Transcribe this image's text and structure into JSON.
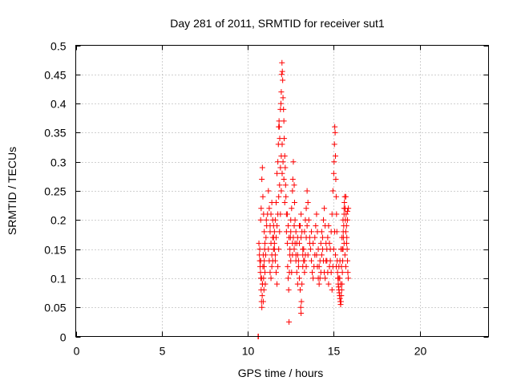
{
  "chart_data": {
    "type": "scatter",
    "title": "Day 281 of 2011, SRMTID for receiver sut1",
    "xlabel": "GPS time / hours",
    "ylabel": "SRMTID / TECUs",
    "xlim": [
      0,
      24
    ],
    "ylim": [
      0,
      0.5
    ],
    "xticks": [
      0,
      5,
      10,
      15,
      20
    ],
    "xtick_labels": [
      "0",
      "5",
      "10",
      "15",
      "20"
    ],
    "yticks": [
      0,
      0.05,
      0.1,
      0.15,
      0.2,
      0.25,
      0.3,
      0.35,
      0.4,
      0.45,
      0.5
    ],
    "ytick_labels": [
      "0",
      "0.05",
      "0.1",
      "0.15",
      "0.2",
      "0.25",
      "0.3",
      "0.35",
      "0.4",
      "0.45",
      "0.5"
    ],
    "grid": true,
    "marker": "+",
    "color": "#ff0000",
    "series": [
      {
        "name": "sut1",
        "points": [
          [
            10.6,
            0.0
          ],
          [
            10.62,
            0.0
          ],
          [
            10.65,
            0.16
          ],
          [
            10.68,
            0.14
          ],
          [
            10.7,
            0.13
          ],
          [
            10.72,
            0.12
          ],
          [
            10.74,
            0.11
          ],
          [
            10.76,
            0.1
          ],
          [
            10.78,
            0.08
          ],
          [
            10.8,
            0.06
          ],
          [
            10.82,
            0.05
          ],
          [
            10.84,
            0.07
          ],
          [
            10.86,
            0.09
          ],
          [
            10.88,
            0.12
          ],
          [
            10.9,
            0.14
          ],
          [
            10.92,
            0.1
          ],
          [
            10.94,
            0.08
          ],
          [
            10.96,
            0.13
          ],
          [
            10.98,
            0.15
          ],
          [
            11.0,
            0.11
          ],
          [
            11.02,
            0.09
          ],
          [
            11.04,
            0.14
          ],
          [
            11.06,
            0.17
          ],
          [
            11.08,
            0.2
          ],
          [
            10.7,
            0.15
          ],
          [
            10.75,
            0.13
          ],
          [
            10.8,
            0.1
          ],
          [
            10.85,
            0.09
          ],
          [
            10.9,
            0.06
          ],
          [
            10.95,
            0.12
          ],
          [
            10.75,
            0.2
          ],
          [
            10.78,
            0.22
          ],
          [
            10.82,
            0.27
          ],
          [
            10.85,
            0.29
          ],
          [
            10.88,
            0.24
          ],
          [
            10.92,
            0.21
          ],
          [
            10.96,
            0.18
          ],
          [
            11.0,
            0.16
          ],
          [
            11.1,
            0.19
          ],
          [
            11.15,
            0.21
          ],
          [
            11.2,
            0.25
          ],
          [
            11.25,
            0.22
          ],
          [
            11.3,
            0.18
          ],
          [
            11.35,
            0.16
          ],
          [
            11.4,
            0.14
          ],
          [
            11.45,
            0.13
          ],
          [
            11.5,
            0.15
          ],
          [
            11.55,
            0.18
          ],
          [
            11.6,
            0.2
          ],
          [
            11.65,
            0.23
          ],
          [
            11.7,
            0.28
          ],
          [
            11.75,
            0.3
          ],
          [
            11.78,
            0.33
          ],
          [
            11.8,
            0.36
          ],
          [
            11.82,
            0.37
          ],
          [
            11.84,
            0.36
          ],
          [
            11.86,
            0.34
          ],
          [
            11.9,
            0.39
          ],
          [
            11.93,
            0.4
          ],
          [
            11.95,
            0.42
          ],
          [
            11.97,
            0.45
          ],
          [
            11.99,
            0.47
          ],
          [
            12.01,
            0.455
          ],
          [
            12.03,
            0.44
          ],
          [
            12.05,
            0.41
          ],
          [
            12.08,
            0.39
          ],
          [
            12.1,
            0.37
          ],
          [
            12.12,
            0.34
          ],
          [
            12.15,
            0.31
          ],
          [
            12.18,
            0.29
          ],
          [
            12.2,
            0.26
          ],
          [
            12.22,
            0.24
          ],
          [
            12.25,
            0.21
          ],
          [
            11.2,
            0.15
          ],
          [
            11.25,
            0.13
          ],
          [
            11.3,
            0.11
          ],
          [
            11.35,
            0.1
          ],
          [
            11.4,
            0.12
          ],
          [
            11.45,
            0.17
          ],
          [
            11.5,
            0.19
          ],
          [
            11.55,
            0.16
          ],
          [
            11.6,
            0.13
          ],
          [
            11.65,
            0.11
          ],
          [
            11.7,
            0.09
          ],
          [
            11.75,
            0.12
          ],
          [
            11.8,
            0.15
          ],
          [
            11.85,
            0.18
          ],
          [
            11.9,
            0.21
          ],
          [
            11.95,
            0.25
          ],
          [
            12.0,
            0.28
          ],
          [
            12.05,
            0.3
          ],
          [
            12.1,
            0.27
          ],
          [
            12.15,
            0.23
          ],
          [
            11.3,
            0.19
          ],
          [
            11.35,
            0.21
          ],
          [
            11.4,
            0.23
          ],
          [
            11.45,
            0.2
          ],
          [
            11.5,
            0.17
          ],
          [
            11.55,
            0.15
          ],
          [
            11.6,
            0.14
          ],
          [
            11.65,
            0.17
          ],
          [
            11.7,
            0.19
          ],
          [
            11.75,
            0.21
          ],
          [
            11.8,
            0.24
          ],
          [
            11.85,
            0.26
          ],
          [
            11.9,
            0.29
          ],
          [
            11.95,
            0.31
          ],
          [
            12.0,
            0.33
          ],
          [
            12.25,
            0.18
          ],
          [
            12.3,
            0.16
          ],
          [
            12.32,
            0.12
          ],
          [
            12.35,
            0.1
          ],
          [
            12.38,
            0.08
          ],
          [
            12.4,
            0.025
          ],
          [
            12.42,
            0.11
          ],
          [
            12.45,
            0.14
          ],
          [
            12.48,
            0.17
          ],
          [
            12.5,
            0.2
          ],
          [
            12.55,
            0.22
          ],
          [
            12.6,
            0.25
          ],
          [
            12.62,
            0.27
          ],
          [
            12.65,
            0.3
          ],
          [
            12.7,
            0.26
          ],
          [
            12.72,
            0.23
          ],
          [
            12.75,
            0.2
          ],
          [
            12.8,
            0.18
          ],
          [
            12.85,
            0.16
          ],
          [
            12.9,
            0.14
          ],
          [
            12.95,
            0.12
          ],
          [
            13.0,
            0.1
          ],
          [
            13.05,
            0.08
          ],
          [
            13.08,
            0.05
          ],
          [
            13.1,
            0.04
          ],
          [
            13.12,
            0.06
          ],
          [
            13.15,
            0.09
          ],
          [
            13.2,
            0.12
          ],
          [
            13.25,
            0.15
          ],
          [
            13.3,
            0.18
          ],
          [
            13.35,
            0.2
          ],
          [
            13.4,
            0.22
          ],
          [
            13.45,
            0.25
          ],
          [
            13.5,
            0.23
          ],
          [
            13.55,
            0.2
          ],
          [
            13.6,
            0.17
          ],
          [
            13.65,
            0.15
          ],
          [
            13.7,
            0.13
          ],
          [
            13.75,
            0.11
          ],
          [
            13.8,
            0.1
          ],
          [
            13.85,
            0.12
          ],
          [
            12.3,
            0.21
          ],
          [
            12.35,
            0.19
          ],
          [
            12.4,
            0.17
          ],
          [
            12.45,
            0.15
          ],
          [
            12.5,
            0.13
          ],
          [
            12.55,
            0.11
          ],
          [
            12.6,
            0.14
          ],
          [
            12.65,
            0.17
          ],
          [
            12.7,
            0.19
          ],
          [
            12.75,
            0.16
          ],
          [
            12.8,
            0.13
          ],
          [
            12.85,
            0.11
          ],
          [
            12.9,
            0.09
          ],
          [
            12.95,
            0.13
          ],
          [
            13.0,
            0.16
          ],
          [
            13.05,
            0.19
          ],
          [
            13.1,
            0.21
          ],
          [
            13.15,
            0.18
          ],
          [
            13.2,
            0.15
          ],
          [
            13.25,
            0.13
          ],
          [
            13.3,
            0.11
          ],
          [
            13.35,
            0.14
          ],
          [
            13.4,
            0.17
          ],
          [
            13.45,
            0.19
          ],
          [
            12.5,
            0.18
          ],
          [
            12.6,
            0.16
          ],
          [
            12.7,
            0.15
          ],
          [
            12.8,
            0.14
          ],
          [
            12.9,
            0.17
          ],
          [
            13.0,
            0.19
          ],
          [
            13.1,
            0.17
          ],
          [
            13.2,
            0.14
          ],
          [
            13.3,
            0.13
          ],
          [
            13.4,
            0.12
          ],
          [
            13.5,
            0.14
          ],
          [
            13.6,
            0.16
          ],
          [
            13.7,
            0.18
          ],
          [
            13.8,
            0.16
          ],
          [
            13.9,
            0.14
          ],
          [
            13.9,
            0.17
          ],
          [
            13.95,
            0.19
          ],
          [
            14.0,
            0.21
          ],
          [
            14.05,
            0.18
          ],
          [
            14.1,
            0.15
          ],
          [
            14.15,
            0.12
          ],
          [
            14.2,
            0.1
          ],
          [
            14.25,
            0.11
          ],
          [
            14.3,
            0.14
          ],
          [
            14.35,
            0.17
          ],
          [
            14.4,
            0.2
          ],
          [
            14.45,
            0.22
          ],
          [
            14.5,
            0.19
          ],
          [
            14.55,
            0.16
          ],
          [
            14.6,
            0.13
          ],
          [
            14.65,
            0.11
          ],
          [
            14.7,
            0.09
          ],
          [
            14.75,
            0.12
          ],
          [
            14.8,
            0.15
          ],
          [
            14.85,
            0.18
          ],
          [
            14.9,
            0.21
          ],
          [
            14.95,
            0.25
          ],
          [
            15.0,
            0.28
          ],
          [
            15.02,
            0.3
          ],
          [
            15.04,
            0.33
          ],
          [
            15.06,
            0.36
          ],
          [
            15.08,
            0.35
          ],
          [
            15.1,
            0.31
          ],
          [
            15.12,
            0.27
          ],
          [
            15.14,
            0.24
          ],
          [
            15.16,
            0.21
          ],
          [
            15.18,
            0.18
          ],
          [
            14.0,
            0.14
          ],
          [
            14.05,
            0.12
          ],
          [
            14.1,
            0.1
          ],
          [
            14.15,
            0.09
          ],
          [
            14.2,
            0.13
          ],
          [
            14.25,
            0.16
          ],
          [
            14.3,
            0.18
          ],
          [
            14.35,
            0.15
          ],
          [
            14.4,
            0.13
          ],
          [
            14.45,
            0.11
          ],
          [
            14.5,
            0.1
          ],
          [
            14.55,
            0.13
          ],
          [
            14.6,
            0.15
          ],
          [
            14.65,
            0.17
          ],
          [
            14.7,
            0.19
          ],
          [
            14.75,
            0.16
          ],
          [
            14.8,
            0.13
          ],
          [
            14.85,
            0.11
          ],
          [
            14.9,
            0.08
          ],
          [
            14.95,
            0.12
          ],
          [
            15.0,
            0.15
          ],
          [
            15.05,
            0.18
          ],
          [
            15.1,
            0.14
          ],
          [
            15.15,
            0.12
          ],
          [
            15.2,
            0.13
          ],
          [
            15.22,
            0.11
          ],
          [
            15.24,
            0.1
          ],
          [
            15.26,
            0.09
          ],
          [
            15.28,
            0.085
          ],
          [
            15.3,
            0.08
          ],
          [
            15.32,
            0.075
          ],
          [
            15.34,
            0.07
          ],
          [
            15.36,
            0.065
          ],
          [
            15.38,
            0.06
          ],
          [
            15.4,
            0.055
          ],
          [
            15.42,
            0.06
          ],
          [
            15.44,
            0.07
          ],
          [
            15.46,
            0.08
          ],
          [
            15.48,
            0.09
          ],
          [
            15.5,
            0.11
          ],
          [
            15.52,
            0.13
          ],
          [
            15.54,
            0.15
          ],
          [
            15.56,
            0.17
          ],
          [
            15.58,
            0.19
          ],
          [
            15.6,
            0.21
          ],
          [
            15.62,
            0.23
          ],
          [
            15.64,
            0.24
          ],
          [
            15.66,
            0.22
          ],
          [
            15.68,
            0.2
          ],
          [
            15.7,
            0.18
          ],
          [
            15.72,
            0.21
          ],
          [
            15.74,
            0.19
          ],
          [
            15.76,
            0.17
          ],
          [
            15.78,
            0.15
          ],
          [
            15.8,
            0.13
          ],
          [
            15.82,
            0.11
          ],
          [
            15.84,
            0.1
          ],
          [
            15.3,
            0.12
          ],
          [
            15.35,
            0.1
          ],
          [
            15.4,
            0.09
          ],
          [
            15.45,
            0.12
          ],
          [
            15.5,
            0.15
          ],
          [
            15.55,
            0.18
          ],
          [
            15.6,
            0.16
          ],
          [
            15.65,
            0.14
          ],
          [
            15.7,
            0.12
          ],
          [
            15.75,
            0.16
          ],
          [
            15.8,
            0.2
          ],
          [
            15.85,
            0.22
          ],
          [
            15.3,
            0.1
          ],
          [
            15.36,
            0.13
          ],
          [
            15.42,
            0.15
          ],
          [
            15.48,
            0.17
          ],
          [
            15.54,
            0.2
          ],
          [
            15.6,
            0.22
          ],
          [
            15.7,
            0.24
          ],
          [
            15.8,
            0.215
          ]
        ]
      }
    ]
  }
}
